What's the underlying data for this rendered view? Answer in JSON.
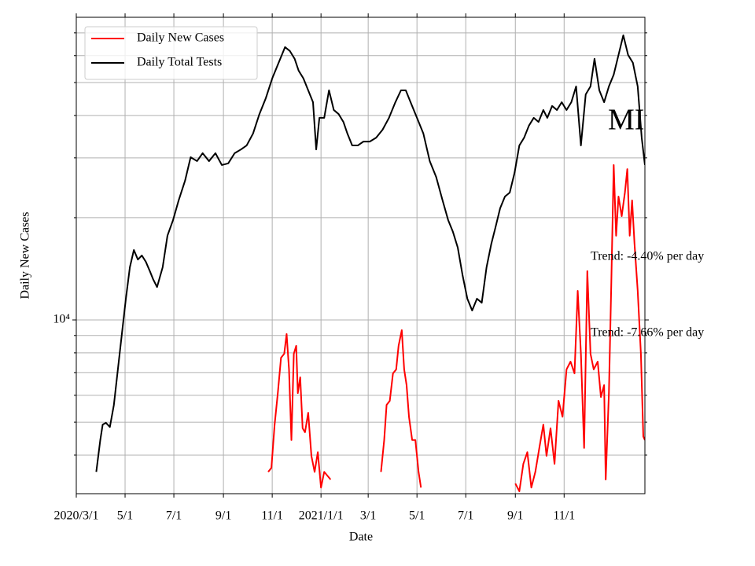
{
  "chart_data": {
    "type": "line",
    "y_label": "Daily New Cases",
    "x_label": "Date",
    "annotations": [
      "MI",
      "Trend: -4.40% per day",
      "Trend: -7.66% per day"
    ],
    "log_y": true,
    "grid": true,
    "legend": "upper left",
    "xlim": [
      "2020-03-01",
      "2022-02-10"
    ],
    "xticks": [
      {
        "value": "2020-03-01",
        "label": "2020/3/1"
      },
      {
        "value": "2020-05-01",
        "label": "5/1"
      },
      {
        "value": "2020-07-01",
        "label": "7/1"
      },
      {
        "value": "2020-09-01",
        "label": "9/1"
      },
      {
        "value": "2020-11-01",
        "label": "11/1"
      },
      {
        "value": "2021-01-01",
        "label": "2021/1/1"
      },
      {
        "value": "2021-03-01",
        "label": "3/1"
      },
      {
        "value": "2021-05-01",
        "label": "5/1"
      },
      {
        "value": "2021-07-01",
        "label": "7/1"
      },
      {
        "value": "2021-09-01",
        "label": "9/1"
      },
      {
        "value": "2021-11-01",
        "label": "11/1"
      }
    ],
    "ylim": [
      3080,
      77800
    ],
    "yticks": [
      {
        "value": 10000,
        "label": "10⁴"
      }
    ],
    "yminor_ticks": [
      4000,
      5000,
      6000,
      7000,
      8000,
      9000,
      20000,
      30000,
      40000,
      50000,
      60000,
      70000
    ],
    "series": [
      {
        "name": "Daily New Cases",
        "color": "#ff0000",
        "x": [
          "2020-10-27",
          "2020-10-31",
          "2020-11-04",
          "2020-11-08",
          "2020-11-12",
          "2020-11-16",
          "2020-11-19",
          "2020-11-22",
          "2020-11-25",
          "2020-11-28",
          "2020-12-01",
          "2020-12-03",
          "2020-12-06",
          "2020-12-09",
          "2020-12-12",
          "2020-12-16",
          "2020-12-20",
          "2020-12-24",
          "2020-12-28",
          "2021-01-01",
          "2021-01-05",
          "2021-01-13",
          "2021-02-15",
          "2021-03-17",
          "2021-03-21",
          "2021-03-24",
          "2021-03-28",
          "2021-04-01",
          "2021-04-05",
          "2021-04-08",
          "2021-04-12",
          "2021-04-15",
          "2021-04-18",
          "2021-04-21",
          "2021-04-25",
          "2021-04-29",
          "2021-05-03",
          "2021-05-06",
          "2021-07-01",
          "2021-09-01",
          "2021-09-06",
          "2021-09-11",
          "2021-09-16",
          "2021-09-21",
          "2021-09-26",
          "2021-10-01",
          "2021-10-06",
          "2021-10-10",
          "2021-10-15",
          "2021-10-20",
          "2021-10-25",
          "2021-10-30",
          "2021-11-04",
          "2021-11-09",
          "2021-11-14",
          "2021-11-18",
          "2021-11-22",
          "2021-11-26",
          "2021-11-30",
          "2021-12-04",
          "2021-12-08",
          "2021-12-13",
          "2021-12-17",
          "2021-12-21",
          "2021-12-23",
          "2021-12-27",
          "2021-12-30",
          "2022-01-02",
          "2022-01-05",
          "2022-01-08",
          "2022-01-12",
          "2022-01-16",
          "2022-01-19",
          "2022-01-22",
          "2022-01-25",
          "2022-01-28",
          "2022-02-01",
          "2022-02-05",
          "2022-02-08",
          "2022-02-10"
        ],
        "values": [
          3570,
          3670,
          4920,
          6090,
          7740,
          7950,
          9090,
          7150,
          4430,
          7950,
          8390,
          6090,
          6780,
          4800,
          4670,
          5330,
          3980,
          3570,
          4080,
          3210,
          3570,
          3390,
          null,
          3570,
          4430,
          5620,
          5780,
          6960,
          7150,
          8390,
          9330,
          7150,
          6430,
          5190,
          4430,
          4430,
          3570,
          3210,
          null,
          3300,
          3130,
          3770,
          4080,
          3210,
          3570,
          4200,
          4920,
          3980,
          4800,
          3770,
          5780,
          5190,
          7150,
          7540,
          6960,
          12180,
          7950,
          4200,
          13920,
          7950,
          7150,
          7540,
          5930,
          6430,
          3390,
          6090,
          12850,
          28580,
          17700,
          23080,
          20210,
          23710,
          27800,
          17700,
          22490,
          16770,
          12180,
          7950,
          4540,
          4430
        ]
      },
      {
        "name": "Daily Total Tests",
        "color": "#000000",
        "x": [
          "2020-03-26",
          "2020-03-31",
          "2020-04-03",
          "2020-04-07",
          "2020-04-12",
          "2020-04-17",
          "2020-04-22",
          "2020-04-27",
          "2020-05-02",
          "2020-05-07",
          "2020-05-12",
          "2020-05-17",
          "2020-05-22",
          "2020-05-27",
          "2020-06-01",
          "2020-06-05",
          "2020-06-10",
          "2020-06-17",
          "2020-06-23",
          "2020-06-30",
          "2020-07-07",
          "2020-07-15",
          "2020-07-22",
          "2020-07-30",
          "2020-08-06",
          "2020-08-14",
          "2020-08-22",
          "2020-08-30",
          "2020-09-07",
          "2020-09-15",
          "2020-09-23",
          "2020-09-30",
          "2020-10-08",
          "2020-10-16",
          "2020-10-24",
          "2020-11-01",
          "2020-11-09",
          "2020-11-17",
          "2020-11-23",
          "2020-11-29",
          "2020-12-04",
          "2020-12-10",
          "2020-12-16",
          "2020-12-22",
          "2020-12-26",
          "2020-12-30",
          "2021-01-05",
          "2021-01-11",
          "2021-01-17",
          "2021-01-23",
          "2021-01-29",
          "2021-02-03",
          "2021-02-09",
          "2021-02-16",
          "2021-02-23",
          "2021-03-03",
          "2021-03-11",
          "2021-03-19",
          "2021-03-27",
          "2021-04-04",
          "2021-04-11",
          "2021-04-17",
          "2021-04-23",
          "2021-05-01",
          "2021-05-09",
          "2021-05-17",
          "2021-05-25",
          "2021-06-02",
          "2021-06-09",
          "2021-06-15",
          "2021-06-21",
          "2021-06-27",
          "2021-07-03",
          "2021-07-09",
          "2021-07-15",
          "2021-07-21",
          "2021-07-27",
          "2021-08-02",
          "2021-08-07",
          "2021-08-13",
          "2021-08-19",
          "2021-08-25",
          "2021-08-31",
          "2021-09-06",
          "2021-09-12",
          "2021-09-18",
          "2021-09-24",
          "2021-09-30",
          "2021-10-06",
          "2021-10-11",
          "2021-10-17",
          "2021-10-23",
          "2021-10-29",
          "2021-11-04",
          "2021-11-10",
          "2021-11-16",
          "2021-11-22",
          "2021-11-28",
          "2021-12-04",
          "2021-12-09",
          "2021-12-15",
          "2021-12-21",
          "2021-12-27",
          "2022-01-02",
          "2022-01-08",
          "2022-01-14",
          "2022-01-20",
          "2022-01-26",
          "2022-02-01",
          "2022-02-06",
          "2022-02-10"
        ],
        "values": [
          3570,
          4430,
          4920,
          4980,
          4840,
          5620,
          7150,
          9090,
          11550,
          14290,
          16070,
          15060,
          15480,
          14830,
          13920,
          13190,
          12500,
          14290,
          17700,
          19680,
          22490,
          25700,
          30140,
          29350,
          30970,
          29350,
          30970,
          28580,
          28900,
          30970,
          31770,
          32630,
          35370,
          40380,
          44970,
          51400,
          57150,
          63550,
          61940,
          58740,
          54200,
          51400,
          47430,
          43750,
          31770,
          39350,
          39350,
          47430,
          41500,
          40380,
          38280,
          35370,
          32630,
          32630,
          33500,
          33500,
          34410,
          36310,
          39350,
          43750,
          47430,
          47430,
          43750,
          39350,
          35370,
          29350,
          26360,
          22490,
          19680,
          18160,
          16330,
          13550,
          11550,
          10660,
          11550,
          11240,
          14290,
          16770,
          18660,
          21330,
          23080,
          23710,
          27100,
          32630,
          34410,
          37330,
          39350,
          38280,
          41500,
          39350,
          42650,
          41500,
          43750,
          41500,
          43750,
          48700,
          32630,
          46130,
          48700,
          58740,
          47430,
          43750,
          48700,
          52720,
          60260,
          68870,
          60260,
          57150,
          48700,
          34410,
          28580
        ]
      }
    ]
  }
}
